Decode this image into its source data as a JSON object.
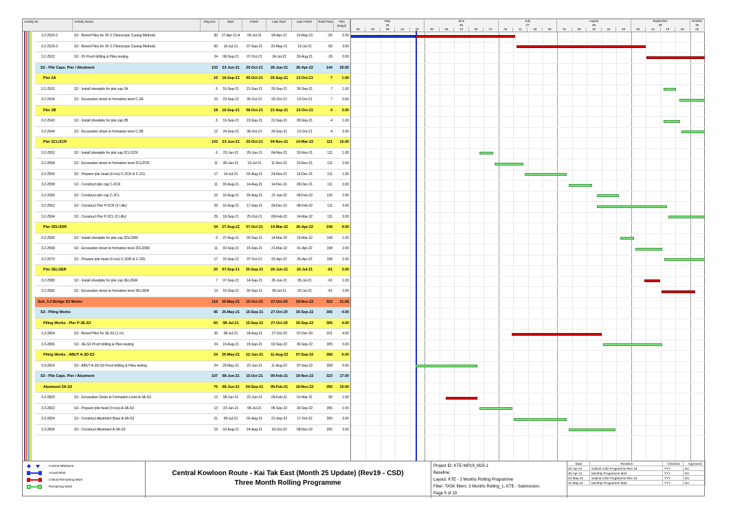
{
  "columns": {
    "activity_id": "Activity ID",
    "activity_name": "Activity Name",
    "orig_dur": "Orig Dur",
    "start": "Start",
    "finish": "Finish",
    "late_start": "Late Start",
    "late_finish": "Late Finish",
    "total_float": "Total Float",
    "tra": "TRA (Days)"
  },
  "timeline": {
    "months": [
      "May",
      "June",
      "July",
      "August",
      "September",
      "October"
    ],
    "month_nums": [
      "25",
      "26",
      "27",
      "28",
      "29",
      "30"
    ],
    "days": [
      "25",
      "02",
      "09",
      "16",
      "23",
      "30",
      "06",
      "13",
      "20",
      "27",
      "04",
      "11",
      "18",
      "25",
      "01",
      "08",
      "15",
      "22",
      "29",
      "05",
      "12",
      "19",
      "26",
      "03"
    ]
  },
  "rows": [
    {
      "type": "task",
      "id": "3.2-2520-2",
      "name": "S2 - Bored Piles for 2F-2 (Telescopic Casing Method)",
      "dur": "82",
      "start": "17-Apr-21 A",
      "finish": "09-Jul-21",
      "ls": "04-Apr-21",
      "lf": "19-May-21",
      "tf": "-50",
      "tra": "5.00"
    },
    {
      "type": "task",
      "id": "3.2-2520-3",
      "name": "S2 - Bored Piles for 2F-3 (Telescopic Casing Method)",
      "dur": "60",
      "start": "10-Jul-21",
      "finish": "07-Sep-21",
      "ls": "20-May-21",
      "lf": "19-Jul-21",
      "tf": "-50",
      "tra": "3.00"
    },
    {
      "type": "task",
      "id": "3.2-2522",
      "name": "S2 - 2F Proof drilling & Piles testing",
      "dur": "24",
      "start": "08-Sep-21",
      "finish": "07-Oct-21",
      "ls": "24-Jul-21",
      "lf": "20-Aug-21",
      "tf": "-39",
      "tra": "0.00"
    },
    {
      "type": "group1",
      "name": "S2 - Pile Caps, Pier / Abutment",
      "dur": "103",
      "start": "23-Jun-21",
      "finish": "25-Oct-21",
      "ls": "26-Jun-21",
      "lf": "26-Apr-22",
      "tf": "144",
      "tra": "26.00"
    },
    {
      "type": "group2",
      "name": "Pier 2A",
      "dur": "15",
      "start": "16-Sep-21",
      "finish": "05-Oct-21",
      "ls": "25-Sep-21",
      "lf": "13-Oct-21",
      "tf": "7",
      "tra": "1.00"
    },
    {
      "type": "task",
      "id": "3.2-2532",
      "name": "S2 - Install sheetpile for pile cap 2A",
      "dur": "5",
      "start": "16-Sep-21",
      "finish": "21-Sep-21",
      "ls": "25-Sep-21",
      "lf": "30-Sep-21",
      "tf": "7",
      "tra": "1.00"
    },
    {
      "type": "task",
      "id": "3.2-2534",
      "name": "S2 - Excavation down to formation level C-2A",
      "dur": "10",
      "start": "23-Sep-21",
      "finish": "05-Oct-21",
      "ls": "02-Oct-21",
      "lf": "13-Oct-21",
      "tf": "7",
      "tra": "0.00"
    },
    {
      "type": "group2",
      "name": "Pier 2B",
      "dur": "18",
      "start": "16-Sep-21",
      "finish": "08-Oct-21",
      "ls": "21-Sep-21",
      "lf": "13-Oct-21",
      "tf": "4",
      "tra": "3.00"
    },
    {
      "type": "task",
      "id": "3.2-2542",
      "name": "S2 - Install sheetpile for pile cap 2B",
      "dur": "6",
      "start": "16-Sep-21",
      "finish": "23-Sep-21",
      "ls": "21-Sep-21",
      "lf": "28-Sep-21",
      "tf": "4",
      "tra": "1.00"
    },
    {
      "type": "task",
      "id": "3.2-2544",
      "name": "S2 - Excavation down to formation level C-2B",
      "dur": "12",
      "start": "24-Sep-21",
      "finish": "08-Oct-21",
      "ls": "29-Sep-21",
      "lf": "13-Oct-21",
      "tf": "4",
      "tra": "2.00"
    },
    {
      "type": "group2",
      "name": "Pier 2CL/2CR",
      "dur": "103",
      "start": "23-Jun-21",
      "finish": "25-Oct-21",
      "ls": "04-Nov-21",
      "lf": "14-Mar-22",
      "tf": "111",
      "tra": "15.00"
    },
    {
      "type": "task",
      "id": "3.2-2552",
      "name": "S2 - Install sheetpile for pile cap 2CL/2CR",
      "dur": "6",
      "start": "23-Jun-21",
      "finish": "29-Jun-21",
      "ls": "04-Nov-21",
      "lf": "10-Nov-21",
      "tf": "111",
      "tra": "1.00"
    },
    {
      "type": "task",
      "id": "3.2-2554",
      "name": "S2 - Excavation down to formation level 2CL/2CR",
      "dur": "11",
      "start": "30-Jun-21",
      "finish": "13-Jul-21",
      "ls": "11-Nov-21",
      "lf": "23-Nov-21",
      "tf": "111",
      "tra": "2.00"
    },
    {
      "type": "task",
      "id": "3.2-2556",
      "name": "S2 - Prepare pile head (4 nos) C-2CR & C-2CL",
      "dur": "17",
      "start": "14-Jul-21",
      "finish": "02-Aug-21",
      "ls": "24-Nov-21",
      "lf": "13-Dec-21",
      "tf": "111",
      "tra": "1.00"
    },
    {
      "type": "task",
      "id": "3.2-2558",
      "name": "S2 - Construct pile cap C-2CR",
      "dur": "11",
      "start": "03-Aug-21",
      "finish": "14-Aug-21",
      "ls": "14-Dec-21",
      "lf": "28-Dec-21",
      "tf": "111",
      "tra": "3.00"
    },
    {
      "type": "task",
      "id": "3.2-2560",
      "name": "S2 - Construct pile cap C-2CL",
      "dur": "10",
      "start": "16-Aug-21",
      "finish": "26-Aug-21",
      "ls": "21-Jan-22",
      "lf": "08-Feb-22",
      "tf": "130",
      "tra": "2.00"
    },
    {
      "type": "task",
      "id": "3.2-2562",
      "name": "S2 - Construct Pier P-2CR (3 Lifts)",
      "dur": "29",
      "start": "16-Aug-21",
      "finish": "17-Sep-21",
      "ls": "29-Dec-21",
      "lf": "08-Feb-22",
      "tf": "111",
      "tra": "3.00"
    },
    {
      "type": "task",
      "id": "3.2-2564",
      "name": "S2 - Construct Pier P-2CL (3 Lifts)",
      "dur": "29",
      "start": "18-Sep-21",
      "finish": "25-Oct-21",
      "ls": "09-Feb-22",
      "lf": "14-Mar-22",
      "tf": "111",
      "tra": "3.00"
    },
    {
      "type": "group2",
      "name": "Pier 2DL/2DR",
      "dur": "34",
      "start": "27-Aug-21",
      "finish": "07-Oct-21",
      "ls": "14-Mar-22",
      "lf": "26-Apr-22",
      "tf": "158",
      "tra": "4.00"
    },
    {
      "type": "task",
      "id": "3.2-2566",
      "name": "S2 - Install sheetpile for pile cap 2DL/2DR",
      "dur": "6",
      "start": "27-Aug-21",
      "finish": "02-Sep-21",
      "ls": "14-Mar-22",
      "lf": "19-Mar-22",
      "tf": "158",
      "tra": "1.00"
    },
    {
      "type": "task",
      "id": "3.2-2568",
      "name": "S2 - Excavation down to formation level 2DL/2DR",
      "dur": "11",
      "start": "03-Sep-21",
      "finish": "15-Sep-21",
      "ls": "21-Mar-22",
      "lf": "01-Apr-22",
      "tf": "158",
      "tra": "2.00"
    },
    {
      "type": "task",
      "id": "3.2-2570",
      "name": "S2 - Prepare pile head (4 nos) C-2DR & C-2DL",
      "dur": "17",
      "start": "16-Sep-21",
      "finish": "07-Oct-21",
      "ls": "02-Apr-22",
      "lf": "26-Apr-22",
      "tf": "158",
      "tra": "1.00"
    },
    {
      "type": "group2",
      "name": "Pier 2EL/2ER",
      "dur": "20",
      "start": "07-Sep-21",
      "finish": "30-Sep-21",
      "ls": "26-Jun-21",
      "lf": "20-Jul-21",
      "tf": "-61",
      "tra": "3.00"
    },
    {
      "type": "task",
      "id": "3.2-2580",
      "name": "S2 - Install sheetpile for pile cap 2EL/2ER",
      "dur": "7",
      "start": "07-Sep-21",
      "finish": "14-Sep-21",
      "ls": "26-Jun-21",
      "lf": "05-Jul-21",
      "tf": "-61",
      "tra": "1.00"
    },
    {
      "type": "task",
      "id": "3.2-2582",
      "name": "S2 - Excavation down to formation level 2EL/2ER",
      "dur": "13",
      "start": "15-Sep-21",
      "finish": "30-Sep-21",
      "ls": "06-Jul-21",
      "lf": "20-Jul-21",
      "tf": "-61",
      "tra": "2.00"
    },
    {
      "type": "group0",
      "name": "Sch_3.3 Bridge S3 Works",
      "dur": "119",
      "start": "25-May-21",
      "finish": "15-Oct-21",
      "ls": "27-Oct-20",
      "lf": "19-Nov-22",
      "tf": "323",
      "tra": "21.00"
    },
    {
      "type": "group1",
      "name": "S3 - Piling Works",
      "dur": "96",
      "start": "25-May-21",
      "finish": "15-Sep-21",
      "ls": "27-Oct-20",
      "lf": "30-Sep-22",
      "tf": "305",
      "tra": "4.00"
    },
    {
      "type": "group2",
      "name": "Piling Works - Pier P-3E-S3",
      "dur": "60",
      "start": "08-Jul-21",
      "finish": "15-Sep-21",
      "ls": "27-Oct-20",
      "lf": "30-Sep-22",
      "tf": "305",
      "tra": "4.00"
    },
    {
      "type": "task",
      "id": "3.3-2804",
      "name": "S3 - Bored Piles for 3E-S3 (1 nr)",
      "dur": "36",
      "start": "08-Jul-21",
      "finish": "18-Aug-21",
      "ls": "27-Oct-20",
      "lf": "07-Dec-20",
      "tf": "-201",
      "tra": "4.00"
    },
    {
      "type": "task",
      "id": "3.3-2806",
      "name": "S3 - 3E-S3 Proof drilling & Piles testing",
      "dur": "24",
      "start": "19-Aug-21",
      "finish": "15-Sep-21",
      "ls": "02-Sep-22",
      "lf": "30-Sep-22",
      "tf": "305",
      "tra": "0.00"
    },
    {
      "type": "group2",
      "name": "Piling Works - ABUT A-3D-S3",
      "dur": "24",
      "start": "25-May-21",
      "finish": "22-Jun-21",
      "ls": "11-Aug-22",
      "lf": "07-Sep-22",
      "tf": "358",
      "tra": "0.00"
    },
    {
      "type": "task",
      "id": "3.3-2814",
      "name": "S3 - ABUT A-3D-S3 Proof drilling & Piles testing",
      "dur": "24",
      "start": "25-May-21",
      "finish": "22-Jun-21",
      "ls": "11-Aug-22",
      "lf": "07-Sep-22",
      "tf": "358",
      "tra": "0.00"
    },
    {
      "type": "group1",
      "name": "S3 - Pile Caps, Pier / Abutment",
      "dur": "107",
      "start": "08-Jun-21",
      "finish": "15-Oct-21",
      "ls": "09-Feb-21",
      "lf": "19-Nov-22",
      "tf": "323",
      "tra": "17.00"
    },
    {
      "type": "group2",
      "name": "Abutment 3A-S3",
      "dur": "75",
      "start": "08-Jun-21",
      "finish": "04-Sep-21",
      "ls": "09-Feb-21",
      "lf": "19-Nov-22",
      "tf": "355",
      "tra": "10.00"
    },
    {
      "type": "task",
      "id": "3.3-2820",
      "name": "S3 - Excavation Down to Formation Level A-3A-S3",
      "dur": "12",
      "start": "08-Jun-21",
      "finish": "22-Jun-21",
      "ls": "09-Feb-21",
      "lf": "01-Mar-21",
      "tf": "-90",
      "tra": "2.00"
    },
    {
      "type": "task",
      "id": "3.3-2822",
      "name": "S3 - Prepare pile head (3 nos) A-3A-S3",
      "dur": "13",
      "start": "23-Jun-21",
      "finish": "08-Jul-21",
      "ls": "05-Sep-22",
      "lf": "20-Sep-22",
      "tf": "355",
      "tra": "1.00"
    },
    {
      "type": "task",
      "id": "3.3-2824",
      "name": "S3 - Construct Abutment Base A-3A-S3",
      "dur": "21",
      "start": "09-Jul-21",
      "finish": "02-Aug-21",
      "ls": "21-Sep-22",
      "lf": "17-Oct-22",
      "tf": "355",
      "tra": "3.00"
    },
    {
      "type": "task",
      "id": "3.3-2826",
      "name": "S3 - Construct Abutment A-3A-S3",
      "dur": "19",
      "start": "03-Aug-21",
      "finish": "24-Aug-21",
      "ls": "18-Oct-22",
      "lf": "08-Nov-22",
      "tf": "355",
      "tra": "3.00"
    }
  ],
  "bars": [
    {
      "row": 0,
      "kind": "act",
      "x0": 0,
      "x1": 94
    },
    {
      "row": 0,
      "kind": "crit",
      "x0": 94,
      "x1": 239
    },
    {
      "row": 1,
      "kind": "crit",
      "x0": 241,
      "x1": 429
    },
    {
      "row": 2,
      "kind": "crit",
      "x0": 430,
      "x1": 515
    },
    {
      "row": 5,
      "kind": "rem",
      "x0": 455,
      "x1": 473
    },
    {
      "row": 6,
      "kind": "rem",
      "x0": 478,
      "x1": 515
    },
    {
      "row": 8,
      "kind": "rem",
      "x0": 455,
      "x1": 479
    },
    {
      "row": 9,
      "kind": "rem",
      "x0": 481,
      "x1": 515
    },
    {
      "row": 11,
      "kind": "rem",
      "x0": 187,
      "x1": 207
    },
    {
      "row": 12,
      "kind": "rem",
      "x0": 209,
      "x1": 251
    },
    {
      "row": 13,
      "kind": "rem",
      "x0": 253,
      "x1": 314
    },
    {
      "row": 14,
      "kind": "rem",
      "x0": 317,
      "x1": 351
    },
    {
      "row": 15,
      "kind": "rem",
      "x0": 358,
      "x1": 390
    },
    {
      "row": 16,
      "kind": "rem",
      "x0": 358,
      "x1": 460
    },
    {
      "row": 17,
      "kind": "rem",
      "x0": 462,
      "x1": 515
    },
    {
      "row": 19,
      "kind": "rem",
      "x0": 392,
      "x1": 412
    },
    {
      "row": 20,
      "kind": "rem",
      "x0": 414,
      "x1": 453
    },
    {
      "row": 21,
      "kind": "rem",
      "x0": 456,
      "x1": 515
    },
    {
      "row": 23,
      "kind": "crit",
      "x0": 427,
      "x1": 450
    },
    {
      "row": 24,
      "kind": "crit",
      "x0": 452,
      "x1": 501
    },
    {
      "row": 28,
      "kind": "crit",
      "x0": 234,
      "x1": 365
    },
    {
      "row": 29,
      "kind": "rem",
      "x0": 367,
      "x1": 453
    },
    {
      "row": 31,
      "kind": "rem",
      "x0": 94,
      "x1": 184
    },
    {
      "row": 34,
      "kind": "crit",
      "x0": 138,
      "x1": 184
    },
    {
      "row": 35,
      "kind": "rem",
      "x0": 187,
      "x1": 235
    },
    {
      "row": 36,
      "kind": "rem",
      "x0": 237,
      "x1": 314
    },
    {
      "row": 37,
      "kind": "rem",
      "x0": 317,
      "x1": 385
    }
  ],
  "legend": {
    "current_milestone": "Current Milestone",
    "actual_work": "Actual Work",
    "critical_remaining": "Critical Remaining Work",
    "remaining_work": "Remaining Work"
  },
  "title": {
    "line1": "Central Kowloon Route - Kai Tak East (Month 25 Update) (Rev19 - CSD)",
    "line2": "Three Month Rolling Programme"
  },
  "project": {
    "id": "Project ID: KTE-WP19_M25-1",
    "baseline": "Baseline:",
    "layout": "Layout: KTE - 3 Months Rolling Programme",
    "filter": "Filter: TASK filters: 3 Months Rolling_1, KTE - Submission.",
    "page": "Page 5 of 19"
  },
  "revisions": {
    "headers": [
      "Date",
      "Revision",
      "Checked",
      "Approved"
    ],
    "rows": [
      [
        "20-Apr-21",
        "Submit CSD Programme Rev 18",
        "TYY",
        "DC"
      ],
      [
        "30-Apr-21",
        "Monthly Programme M24",
        "TYY",
        "DC"
      ],
      [
        "20-May-21",
        "Submit CSD Programme Rev 19",
        "TYY",
        "DC"
      ],
      [
        "31-May-21",
        "Monthly Programme M25",
        "TYY",
        "DC"
      ]
    ]
  },
  "colors": {
    "critical": "#d01010",
    "remaining": "#7ee07e",
    "actual": "#1a3ad0",
    "group_wbs1": "#cfe9f3",
    "group_wbs2": "#ffff6b",
    "group_wbs0": "#ff8c5a"
  }
}
